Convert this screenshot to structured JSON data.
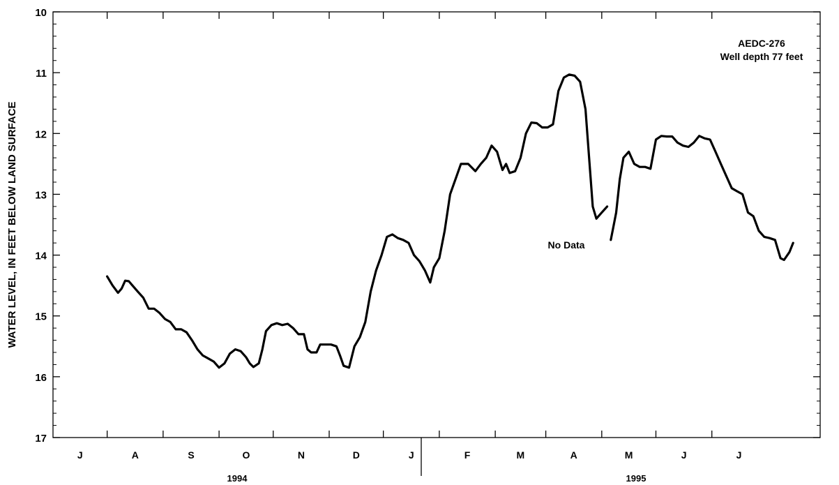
{
  "chart_data": {
    "type": "line",
    "title": "",
    "ylabel": "WATER LEVEL, IN FEET BELOW LAND SURFACE",
    "ylim": [
      10,
      17
    ],
    "y_inverted": true,
    "y_ticks": [
      "10",
      "11",
      "12",
      "13",
      "14",
      "15",
      "16",
      "17"
    ],
    "x_months": [
      "J",
      "A",
      "S",
      "O",
      "N",
      "D",
      "J",
      "F",
      "M",
      "A",
      "M",
      "J",
      "J"
    ],
    "x_years": [
      "1994",
      "1995"
    ],
    "xlim": [
      "1994-06-01",
      "1995-07-31"
    ],
    "annotations": {
      "well_name": "AEDC-276",
      "well_depth": "Well depth 77 feet",
      "gap_label": "No Data"
    },
    "series": [
      {
        "segments": [
          [
            [
              "1994-07-01",
              14.35
            ],
            [
              "1994-07-04",
              14.5
            ],
            [
              "1994-07-07",
              14.62
            ],
            [
              "1994-07-09",
              14.55
            ],
            [
              "1994-07-11",
              14.42
            ],
            [
              "1994-07-13",
              14.43
            ],
            [
              "1994-07-15",
              14.5
            ],
            [
              "1994-07-18",
              14.6
            ],
            [
              "1994-07-21",
              14.7
            ],
            [
              "1994-07-24",
              14.88
            ],
            [
              "1994-07-27",
              14.88
            ],
            [
              "1994-07-30",
              14.95
            ],
            [
              "1994-08-02",
              15.05
            ],
            [
              "1994-08-05",
              15.1
            ],
            [
              "1994-08-08",
              15.22
            ],
            [
              "1994-08-11",
              15.22
            ],
            [
              "1994-08-14",
              15.27
            ],
            [
              "1994-08-17",
              15.4
            ],
            [
              "1994-08-20",
              15.55
            ],
            [
              "1994-08-23",
              15.65
            ],
            [
              "1994-08-26",
              15.7
            ],
            [
              "1994-08-29",
              15.75
            ],
            [
              "1994-09-01",
              15.85
            ],
            [
              "1994-09-04",
              15.78
            ],
            [
              "1994-09-07",
              15.62
            ],
            [
              "1994-09-10",
              15.55
            ],
            [
              "1994-09-13",
              15.58
            ],
            [
              "1994-09-16",
              15.68
            ],
            [
              "1994-09-18",
              15.78
            ],
            [
              "1994-09-20",
              15.84
            ],
            [
              "1994-09-23",
              15.78
            ],
            [
              "1994-09-25",
              15.55
            ],
            [
              "1994-09-27",
              15.25
            ],
            [
              "1994-09-30",
              15.15
            ],
            [
              "1994-10-03",
              15.12
            ],
            [
              "1994-10-06",
              15.15
            ],
            [
              "1994-10-09",
              15.13
            ],
            [
              "1994-10-12",
              15.2
            ],
            [
              "1994-10-15",
              15.3
            ],
            [
              "1994-10-18",
              15.3
            ],
            [
              "1994-10-20",
              15.55
            ],
            [
              "1994-10-22",
              15.6
            ],
            [
              "1994-10-25",
              15.6
            ],
            [
              "1994-10-27",
              15.47
            ],
            [
              "1994-10-30",
              15.47
            ],
            [
              "1994-11-02",
              15.47
            ],
            [
              "1994-11-05",
              15.5
            ],
            [
              "1994-11-07",
              15.65
            ],
            [
              "1994-11-09",
              15.82
            ],
            [
              "1994-11-12",
              15.85
            ],
            [
              "1994-11-15",
              15.5
            ],
            [
              "1994-11-18",
              15.35
            ],
            [
              "1994-11-21",
              15.1
            ],
            [
              "1994-11-24",
              14.6
            ],
            [
              "1994-11-27",
              14.25
            ],
            [
              "1994-11-30",
              14.0
            ],
            [
              "1994-12-03",
              13.7
            ],
            [
              "1994-12-06",
              13.66
            ],
            [
              "1994-12-09",
              13.72
            ],
            [
              "1994-12-12",
              13.75
            ],
            [
              "1994-12-15",
              13.8
            ],
            [
              "1994-12-18",
              14.0
            ],
            [
              "1994-12-21",
              14.1
            ],
            [
              "1994-12-24",
              14.25
            ],
            [
              "1994-12-27",
              14.45
            ],
            [
              "1994-12-29",
              14.2
            ],
            [
              "1995-01-01",
              14.05
            ],
            [
              "1995-01-04",
              13.6
            ],
            [
              "1995-01-07",
              13.0
            ],
            [
              "1995-01-10",
              12.75
            ],
            [
              "1995-01-13",
              12.5
            ],
            [
              "1995-01-17",
              12.5
            ],
            [
              "1995-01-21",
              12.62
            ],
            [
              "1995-01-24",
              12.5
            ],
            [
              "1995-01-27",
              12.4
            ],
            [
              "1995-01-30",
              12.2
            ],
            [
              "1995-02-02",
              12.3
            ],
            [
              "1995-02-05",
              12.6
            ],
            [
              "1995-02-07",
              12.5
            ],
            [
              "1995-02-09",
              12.65
            ],
            [
              "1995-02-12",
              12.62
            ],
            [
              "1995-02-15",
              12.4
            ],
            [
              "1995-02-18",
              12.0
            ],
            [
              "1995-02-21",
              11.82
            ],
            [
              "1995-02-24",
              11.83
            ],
            [
              "1995-02-27",
              11.9
            ],
            [
              "1995-03-02",
              11.9
            ],
            [
              "1995-03-05",
              11.85
            ],
            [
              "1995-03-08",
              11.3
            ],
            [
              "1995-03-11",
              11.08
            ],
            [
              "1995-03-14",
              11.03
            ],
            [
              "1995-03-17",
              11.05
            ],
            [
              "1995-03-20",
              11.15
            ],
            [
              "1995-03-23",
              11.6
            ],
            [
              "1995-03-25",
              12.4
            ],
            [
              "1995-03-27",
              13.2
            ],
            [
              "1995-03-29",
              13.4
            ],
            [
              "1995-04-01",
              13.3
            ],
            [
              "1995-04-04",
              13.2
            ]
          ],
          [
            [
              "1995-04-06",
              13.75
            ],
            [
              "1995-04-07",
              13.6
            ],
            [
              "1995-04-09",
              13.3
            ],
            [
              "1995-04-11",
              12.75
            ],
            [
              "1995-04-13",
              12.4
            ],
            [
              "1995-04-16",
              12.3
            ],
            [
              "1995-04-19",
              12.5
            ],
            [
              "1995-04-22",
              12.55
            ],
            [
              "1995-04-25",
              12.55
            ],
            [
              "1995-04-28",
              12.58
            ],
            [
              "1995-05-01",
              12.1
            ],
            [
              "1995-05-04",
              12.04
            ],
            [
              "1995-05-07",
              12.05
            ],
            [
              "1995-05-10",
              12.05
            ],
            [
              "1995-05-13",
              12.15
            ],
            [
              "1995-05-16",
              12.2
            ],
            [
              "1995-05-19",
              12.22
            ],
            [
              "1995-05-22",
              12.15
            ],
            [
              "1995-05-25",
              12.04
            ],
            [
              "1995-05-28",
              12.08
            ],
            [
              "1995-05-31",
              12.1
            ],
            [
              "1995-06-03",
              12.3
            ],
            [
              "1995-06-06",
              12.5
            ],
            [
              "1995-06-09",
              12.7
            ],
            [
              "1995-06-12",
              12.9
            ],
            [
              "1995-06-15",
              12.95
            ],
            [
              "1995-06-18",
              13.0
            ],
            [
              "1995-06-21",
              13.3
            ],
            [
              "1995-06-24",
              13.36
            ],
            [
              "1995-06-27",
              13.6
            ],
            [
              "1995-06-30",
              13.7
            ],
            [
              "1995-07-03",
              13.72
            ],
            [
              "1995-07-06",
              13.75
            ],
            [
              "1995-07-09",
              14.05
            ],
            [
              "1995-07-11",
              14.08
            ],
            [
              "1995-07-14",
              13.95
            ],
            [
              "1995-07-16",
              13.8
            ]
          ]
        ]
      }
    ]
  }
}
